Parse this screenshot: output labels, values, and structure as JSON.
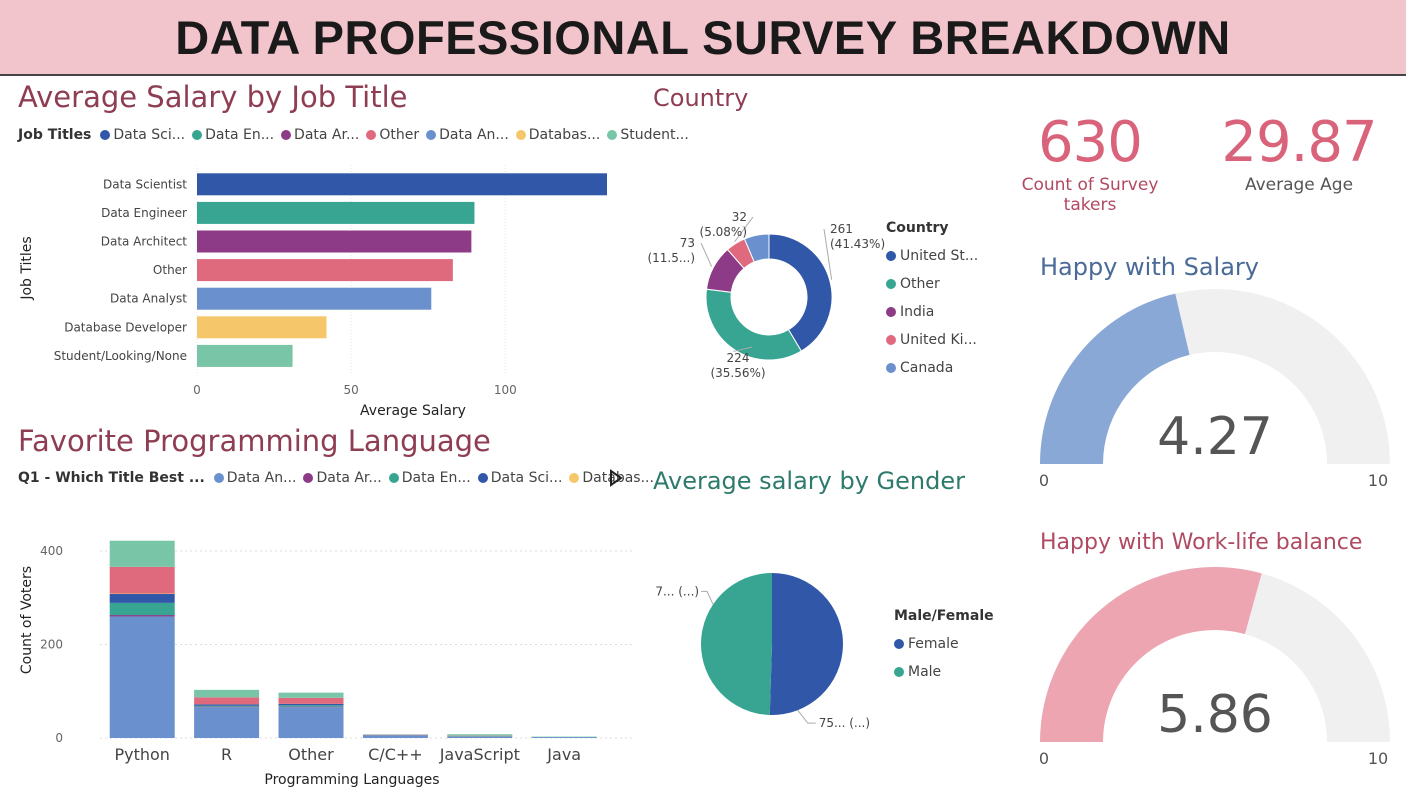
{
  "header": {
    "title": "DATA PROFESSIONAL SURVEY BREAKDOWN"
  },
  "salary_panel": {
    "title": "Average Salary by Job Title",
    "legend_title": "Job Titles",
    "legend_items": [
      "Data Sci...",
      "Data En...",
      "Data Ar...",
      "Other",
      "Data An...",
      "Databas...",
      "Student..."
    ],
    "legend_colors": [
      "#3157a8",
      "#37a592",
      "#8d3a87",
      "#e06a7d",
      "#6a91cd",
      "#f5c76a",
      "#78c5a8"
    ]
  },
  "country_panel": {
    "title": "Country",
    "legend_title": "Country",
    "legend_items": [
      "United St...",
      "Other",
      "India",
      "United Ki...",
      "Canada"
    ]
  },
  "gender_panel": {
    "title": "Average salary by Gender",
    "legend_title": "Male/Female",
    "legend_items": [
      "Female",
      "Male"
    ]
  },
  "language_panel": {
    "title": "Favorite Programming Language",
    "legend_title": "Q1 - Which Title Best ...",
    "legend_items": [
      "Data An...",
      "Data Ar...",
      "Data En...",
      "Data Sci...",
      "Databas..."
    ],
    "legend_colors": [
      "#6a91cd",
      "#8d3a87",
      "#37a592",
      "#3157a8",
      "#f5c76a"
    ]
  },
  "kpis": {
    "count": {
      "value": "630",
      "label": "Count of Survey takers"
    },
    "age": {
      "value": "29.87",
      "label": "Average Age"
    }
  },
  "gauges": {
    "salary": {
      "title": "Happy with Salary",
      "value_text": "4.27",
      "min_label": "0",
      "max_label": "10"
    },
    "worklife": {
      "title": "Happy with Work-life balance",
      "value_text": "5.86",
      "min_label": "0",
      "max_label": "10"
    }
  },
  "chart_data": [
    {
      "id": "salary_by_title",
      "type": "bar",
      "orientation": "horizontal",
      "title": "Average Salary by Job Title",
      "categories": [
        "Data Scientist",
        "Data Engineer",
        "Data Architect",
        "Other",
        "Data Analyst",
        "Database Developer",
        "Student/Looking/None"
      ],
      "values": [
        133,
        90,
        89,
        83,
        76,
        42,
        31
      ],
      "colors": [
        "#3157a8",
        "#37a592",
        "#8d3a87",
        "#e06a7d",
        "#6a91cd",
        "#f5c76a",
        "#78c5a8"
      ],
      "xlabel": "Average Salary",
      "ylabel": "Job Titles",
      "xlim": [
        0,
        133
      ],
      "xticks": [
        0,
        50,
        100
      ],
      "grid": true
    },
    {
      "id": "country",
      "type": "pie",
      "donut": true,
      "title": "Country",
      "categories": [
        "United St...",
        "Other",
        "India",
        "United Ki...",
        "Canada"
      ],
      "values": [
        261,
        224,
        73,
        32,
        40
      ],
      "colors": [
        "#3157a8",
        "#37a592",
        "#8d3a87",
        "#e06a7d",
        "#6a91cd"
      ],
      "data_labels": [
        {
          "value": "261",
          "pct": "(41.43%)"
        },
        {
          "value": "224",
          "pct": "(35.56%)"
        },
        {
          "value": "73",
          "pct": "(11.5...)"
        },
        {
          "value": "32",
          "pct": "(5.08%)"
        }
      ],
      "legend_position": "right"
    },
    {
      "id": "gender_salary",
      "type": "pie",
      "title": "Average salary by Gender",
      "categories": [
        "Female",
        "Male"
      ],
      "values": [
        50.5,
        49.5
      ],
      "colors": [
        "#3157a8",
        "#37a592"
      ],
      "data_labels": [
        "75... (...)",
        "7... (...)"
      ],
      "legend_position": "right"
    },
    {
      "id": "favorite_language",
      "type": "bar",
      "stacked": true,
      "title": "Favorite Programming Language",
      "categories": [
        "Python",
        "R",
        "Other",
        "C/C++",
        "JavaScript",
        "Java"
      ],
      "series": [
        {
          "name": "Data An...",
          "color": "#6a91cd",
          "values": [
            260,
            66,
            66,
            5,
            3,
            2
          ]
        },
        {
          "name": "Data Ar...",
          "color": "#8d3a87",
          "values": [
            3,
            1,
            1,
            0,
            0,
            0
          ]
        },
        {
          "name": "Data En...",
          "color": "#37a592",
          "values": [
            26,
            2,
            3,
            0,
            1,
            0
          ]
        },
        {
          "name": "Data Sci...",
          "color": "#3157a8",
          "values": [
            19,
            3,
            3,
            1,
            0,
            0
          ]
        },
        {
          "name": "Databas...",
          "color": "#f5c76a",
          "values": [
            1,
            0,
            0,
            0,
            0,
            0
          ]
        },
        {
          "color": "#e06a7d",
          "values": [
            57,
            15,
            13,
            1,
            1,
            0
          ]
        },
        {
          "color": "#78c5a8",
          "values": [
            56,
            16,
            11,
            1,
            3,
            1
          ]
        }
      ],
      "xlabel": "Programming Languages",
      "ylabel": "Count of Voters",
      "ylim": [
        0,
        430
      ],
      "yticks": [
        0,
        200,
        400
      ],
      "grid": true
    },
    {
      "id": "happy_salary",
      "type": "gauge",
      "title": "Happy with Salary",
      "value": 4.27,
      "min": 0,
      "max": 10,
      "fill_color": "#89a8d6",
      "track_color": "#f1f0f0"
    },
    {
      "id": "happy_worklife",
      "type": "gauge",
      "title": "Happy with Work-life balance",
      "value": 5.86,
      "min": 0,
      "max": 10,
      "fill_color": "#eda5b2",
      "track_color": "#f1f0f0"
    }
  ]
}
